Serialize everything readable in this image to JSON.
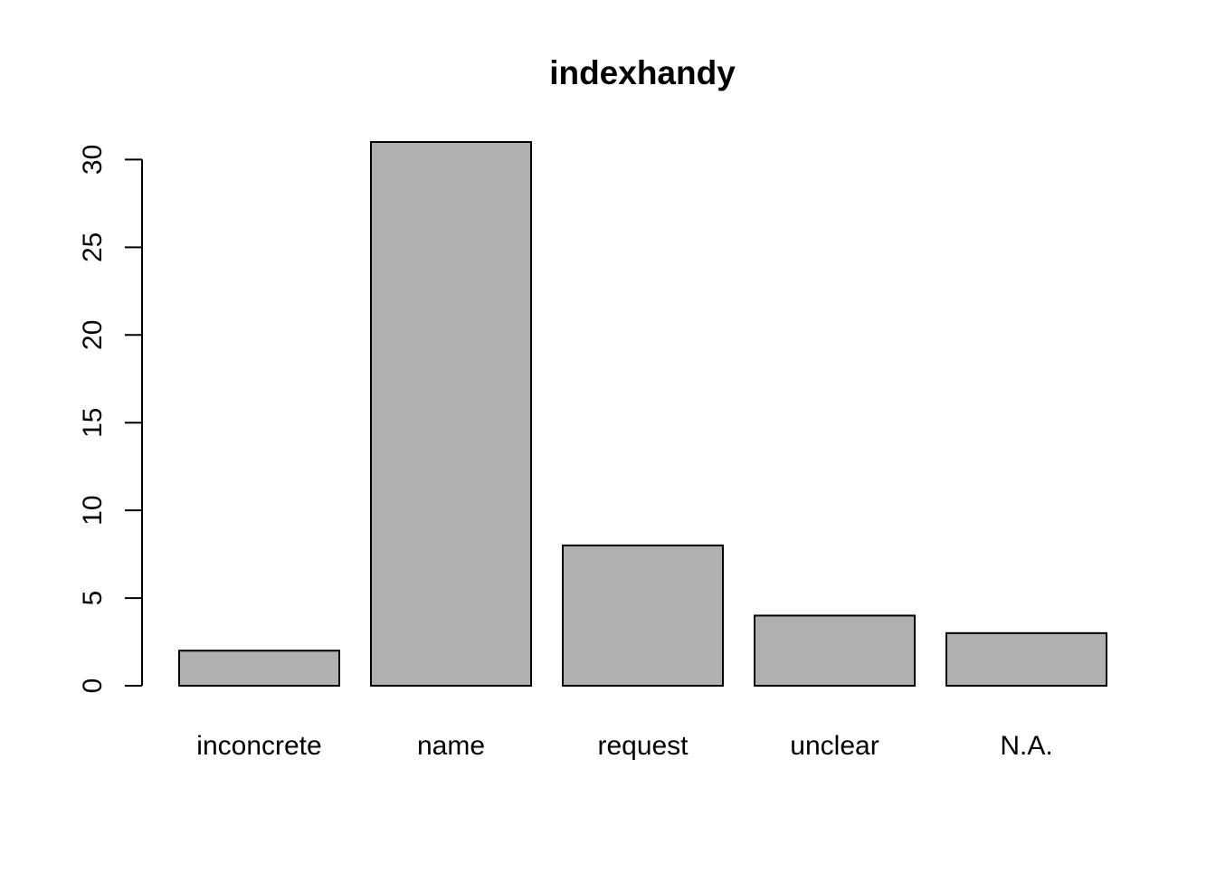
{
  "chart_data": {
    "type": "bar",
    "title": "indexhandy",
    "xlabel": "",
    "ylabel": "",
    "categories": [
      "inconcrete",
      "name",
      "request",
      "unclear",
      "N.A."
    ],
    "values": [
      2,
      31,
      8,
      4,
      3
    ],
    "ylim": [
      0,
      31
    ],
    "yticks": [
      0,
      5,
      10,
      15,
      20,
      25,
      30
    ],
    "ytick_labels": [
      "0",
      "5",
      "10",
      "15",
      "20",
      "25",
      "30"
    ],
    "grid": false,
    "legend": "none",
    "bar_fill": "#b0b0b0",
    "bar_stroke": "#000000"
  }
}
